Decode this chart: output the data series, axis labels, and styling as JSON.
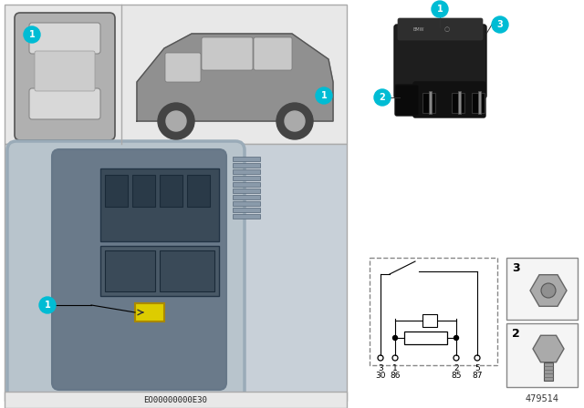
{
  "bg_color": "#ffffff",
  "part_number": "479514",
  "eo_number": "EO00000000E30",
  "callout_color": "#00bcd4",
  "callout_text_color": "#ffffff",
  "dashed_border_color": "#888888",
  "pin_labels": [
    "3",
    "1",
    "2",
    "5"
  ],
  "pin_sublabels": [
    "30",
    "86",
    "85",
    "87"
  ],
  "top_panel_bg": "#e8e8e8",
  "bottom_panel_bg": "#c0c8d0",
  "relay_body_color": "#222222",
  "relay_connector_color": "#111111",
  "car_body_color": "#909090",
  "car_window_color": "#c8c8c8",
  "car_wheel_color": "#444444",
  "car_wheel_rim_color": "#aaaaaa",
  "yellow_component": "#ddcc00",
  "schematic_line_color": "#000000",
  "panel_border": "#aaaaaa",
  "nut_bolt_color": "#aaaaaa",
  "nut_bolt_edge": "#666666"
}
